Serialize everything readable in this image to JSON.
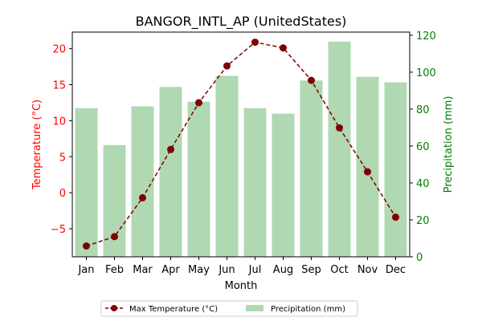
{
  "chart_data": {
    "type": "bar+line",
    "title": "BANGOR_INTL_AP (UnitedStates)",
    "xlabel": "Month",
    "categories": [
      "Jan",
      "Feb",
      "Mar",
      "Apr",
      "May",
      "Jun",
      "Jul",
      "Aug",
      "Sep",
      "Oct",
      "Nov",
      "Dec"
    ],
    "left_axis": {
      "label": "Temperature (°C)",
      "color": "#ff0000",
      "lim": [
        -8.9,
        22.3
      ],
      "ticks": [
        -5,
        0,
        5,
        10,
        15,
        20
      ]
    },
    "right_axis": {
      "label": "Precipitation (mm)",
      "color": "#008000",
      "lim": [
        0,
        121.7
      ],
      "ticks": [
        0,
        20,
        40,
        60,
        80,
        100,
        120
      ]
    },
    "series": [
      {
        "name": "Max Temperature (°C)",
        "kind": "line",
        "axis": "left",
        "color": "#800000",
        "values": [
          -7.4,
          -6.1,
          -0.7,
          6.0,
          12.5,
          17.6,
          20.9,
          20.1,
          15.6,
          9.0,
          2.9,
          -3.4
        ]
      },
      {
        "name": "Precipitation (mm)",
        "kind": "bar",
        "axis": "right",
        "color": "#b0d8b2",
        "values": [
          80.5,
          60.5,
          81.5,
          92.0,
          84.0,
          98.0,
          80.5,
          77.5,
          95.5,
          116.5,
          97.5,
          94.5
        ]
      }
    ],
    "legend": "bottom-center"
  }
}
